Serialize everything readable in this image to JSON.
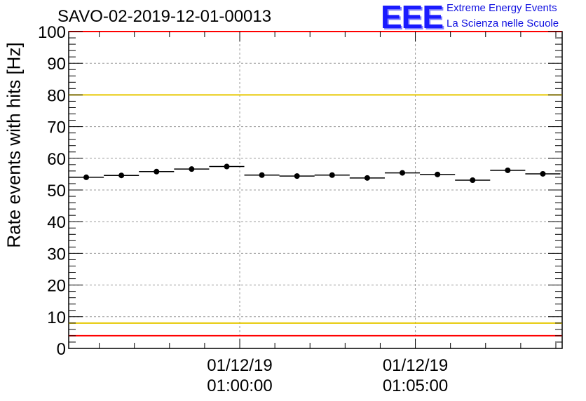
{
  "title": "SAVO-02-2019-12-01-00013",
  "logo": {
    "letters": "EEE",
    "line1": "Extreme Energy Events",
    "line2": "La Scienza nelle Scuole",
    "color": "#1a1aff"
  },
  "chart_data": {
    "type": "scatter",
    "title": "SAVO-02-2019-12-01-00013",
    "ylabel": "Rate events with hits [Hz]",
    "xlabel": "",
    "ylim": [
      0,
      100
    ],
    "yticks": [
      0,
      10,
      20,
      30,
      40,
      50,
      60,
      70,
      80,
      90,
      100
    ],
    "x_unit": "minutes relative to 01/12/19 01:00:00",
    "xlim": [
      -4.87,
      9.18
    ],
    "xticks": [
      {
        "x": 0,
        "label_date": "01/12/19",
        "label_time": "01:00:00"
      },
      {
        "x": 5,
        "label_date": "01/12/19",
        "label_time": "01:05:00"
      }
    ],
    "grid": true,
    "points": [
      {
        "x": -4.37,
        "y": 54.0,
        "xerr": 0.5
      },
      {
        "x": -3.37,
        "y": 54.6,
        "xerr": 0.5
      },
      {
        "x": -2.37,
        "y": 55.8,
        "xerr": 0.5
      },
      {
        "x": -1.37,
        "y": 56.6,
        "xerr": 0.5
      },
      {
        "x": -0.37,
        "y": 57.4,
        "xerr": 0.5
      },
      {
        "x": 0.63,
        "y": 54.7,
        "xerr": 0.5
      },
      {
        "x": 1.63,
        "y": 54.4,
        "xerr": 0.5
      },
      {
        "x": 2.63,
        "y": 54.7,
        "xerr": 0.5
      },
      {
        "x": 3.63,
        "y": 53.8,
        "xerr": 0.5
      },
      {
        "x": 4.63,
        "y": 55.4,
        "xerr": 0.5
      },
      {
        "x": 5.63,
        "y": 54.9,
        "xerr": 0.5
      },
      {
        "x": 6.63,
        "y": 53.1,
        "xerr": 0.5
      },
      {
        "x": 7.63,
        "y": 56.2,
        "xerr": 0.5
      },
      {
        "x": 8.63,
        "y": 55.1,
        "xerr": 0.5
      }
    ],
    "reference_lines": [
      {
        "y": 100,
        "color": "#ff0000",
        "name": "upper-red-limit"
      },
      {
        "y": 80,
        "color": "#e6c800",
        "name": "upper-yellow-limit"
      },
      {
        "y": 8,
        "color": "#e6c800",
        "name": "lower-yellow-limit"
      },
      {
        "y": 4,
        "color": "#ff0000",
        "name": "lower-red-limit"
      }
    ]
  }
}
